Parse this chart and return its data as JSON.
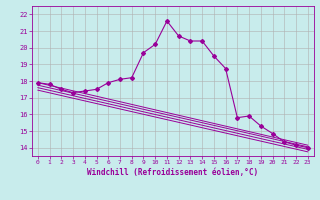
{
  "background_color": "#c8ecec",
  "grid_color": "#b0b0b0",
  "line_color": "#990099",
  "xlabel": "Windchill (Refroidissement éolien,°C)",
  "xlim": [
    -0.5,
    23.5
  ],
  "ylim": [
    13.5,
    22.5
  ],
  "yticks": [
    14,
    15,
    16,
    17,
    18,
    19,
    20,
    21,
    22
  ],
  "xticks": [
    0,
    1,
    2,
    3,
    4,
    5,
    6,
    7,
    8,
    9,
    10,
    11,
    12,
    13,
    14,
    15,
    16,
    17,
    18,
    19,
    20,
    21,
    22,
    23
  ],
  "main_x": [
    0,
    1,
    2,
    3,
    4,
    5,
    6,
    7,
    8,
    9,
    10,
    11,
    12,
    13,
    14,
    15,
    16,
    17,
    18,
    19,
    20,
    21,
    22,
    23
  ],
  "main_y": [
    17.9,
    17.8,
    17.5,
    17.3,
    17.4,
    17.5,
    17.9,
    18.1,
    18.2,
    19.7,
    20.2,
    21.6,
    20.7,
    20.4,
    20.4,
    19.5,
    18.75,
    15.8,
    15.9,
    15.3,
    14.85,
    14.35,
    14.15,
    14.0
  ],
  "line2_x": [
    0,
    23
  ],
  "line2_y": [
    17.9,
    14.15
  ],
  "line3_x": [
    0,
    23
  ],
  "line3_y": [
    17.75,
    14.05
  ],
  "line4_x": [
    0,
    23
  ],
  "line4_y": [
    17.6,
    13.9
  ],
  "line5_x": [
    0,
    23
  ],
  "line5_y": [
    17.45,
    13.75
  ]
}
